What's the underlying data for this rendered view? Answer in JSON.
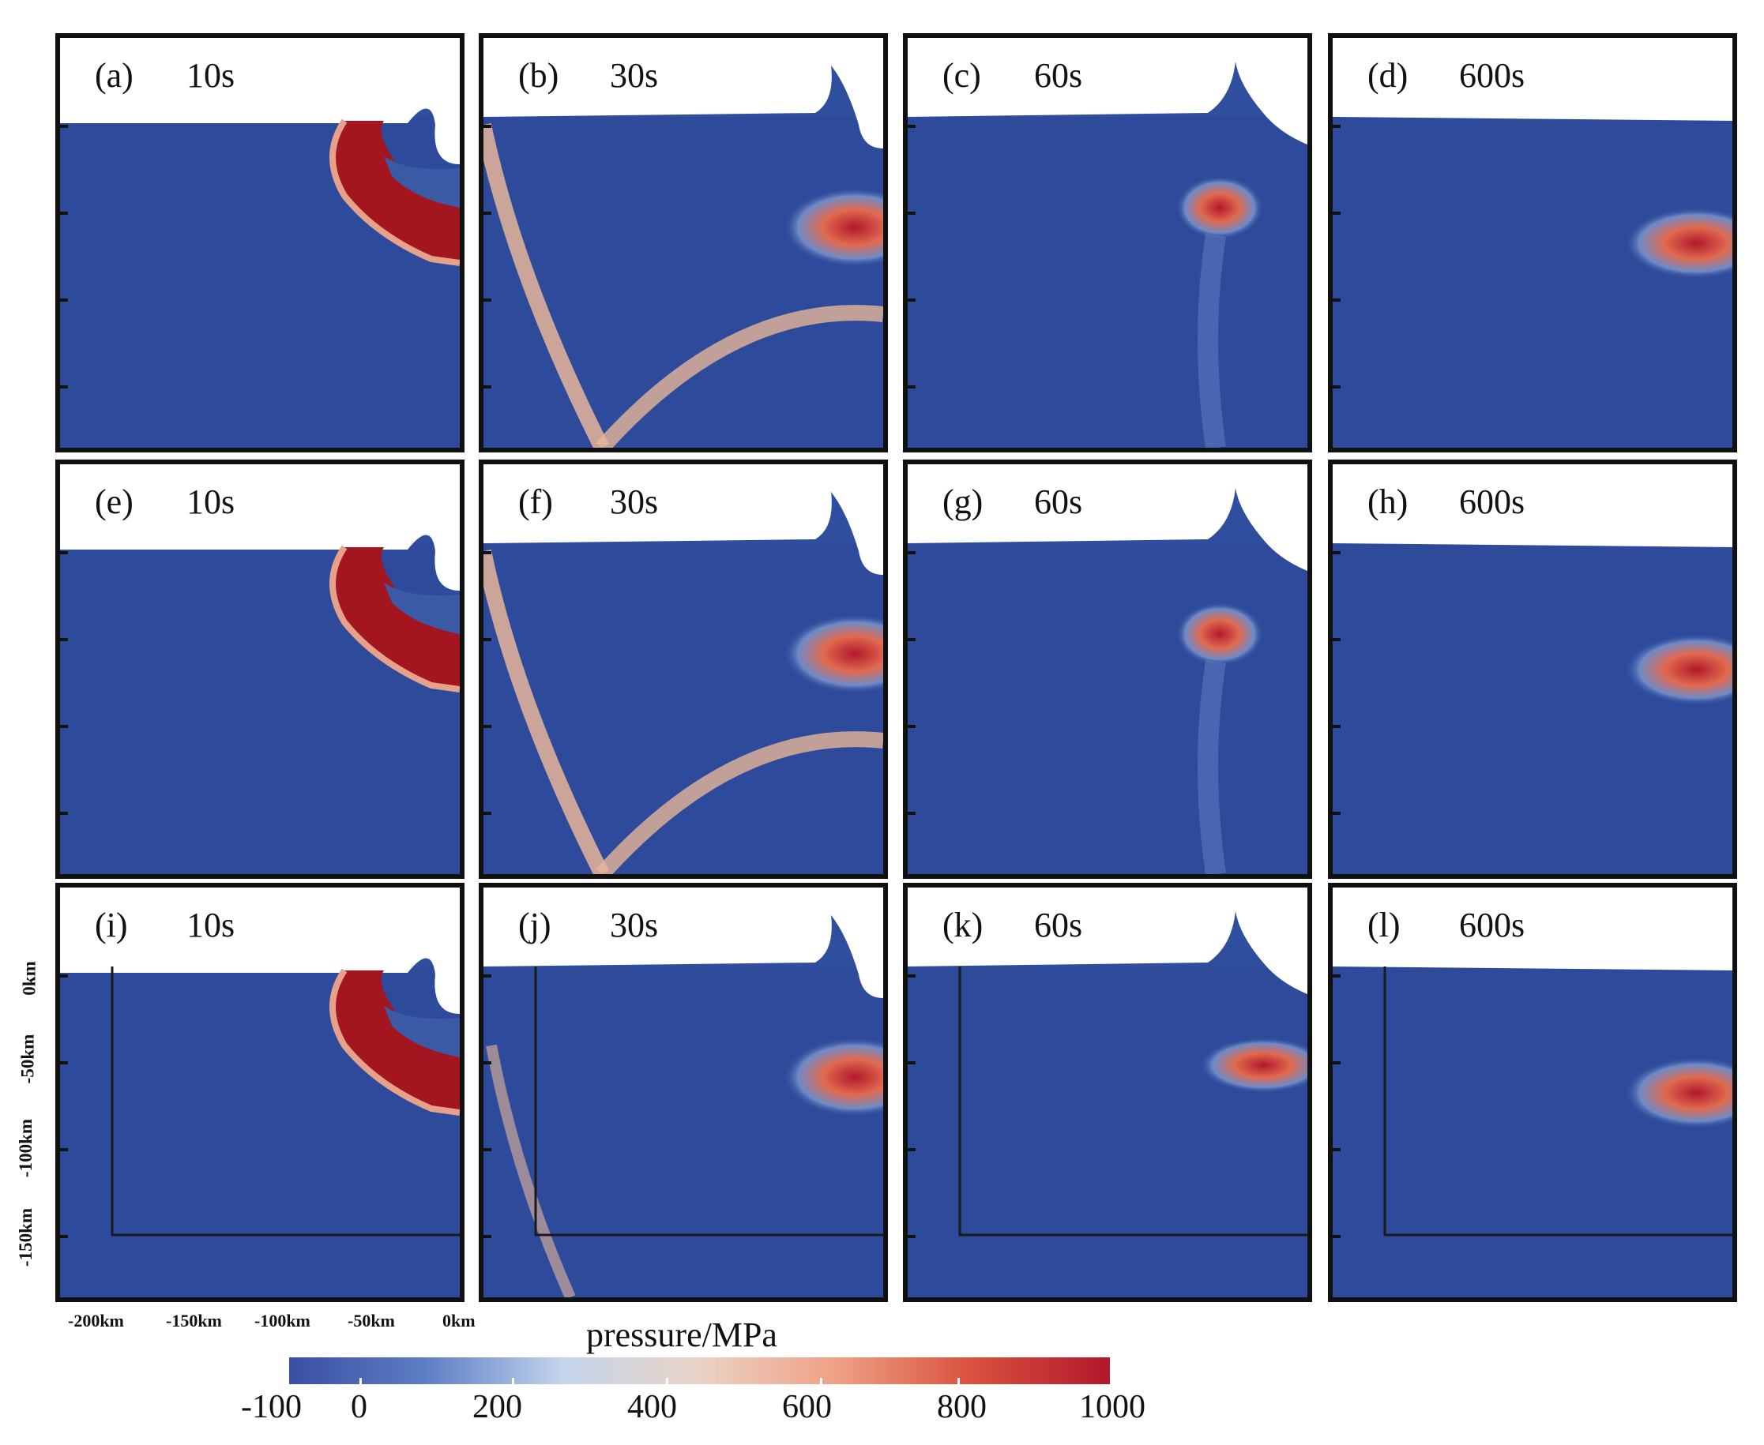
{
  "panels": [
    {
      "label": "(a)",
      "time": "10s"
    },
    {
      "label": "(b)",
      "time": "30s"
    },
    {
      "label": "(c)",
      "time": "60s"
    },
    {
      "label": "(d)",
      "time": "600s"
    },
    {
      "label": "(e)",
      "time": "10s"
    },
    {
      "label": "(f)",
      "time": "30s"
    },
    {
      "label": "(g)",
      "time": "60s"
    },
    {
      "label": "(h)",
      "time": "600s"
    },
    {
      "label": "(i)",
      "time": "10s"
    },
    {
      "label": "(j)",
      "time": "30s"
    },
    {
      "label": "(k)",
      "time": "60s"
    },
    {
      "label": "(l)",
      "time": "600s"
    }
  ],
  "axes": {
    "y_ticks": [
      "0km",
      "-50km",
      "-100km",
      "-150km"
    ],
    "x_ticks": [
      "-200km",
      "-150km",
      "-100km",
      "-50km",
      "0km"
    ]
  },
  "colorbar": {
    "title": "pressure/MPa",
    "ticks": [
      "-100",
      "0",
      "200",
      "400",
      "600",
      "800",
      "1000"
    ],
    "colors": [
      "#3a4ea3",
      "#5d7ec4",
      "#c4d4ec",
      "#e9d3c6",
      "#f0a084",
      "#d9503e",
      "#b2182b"
    ]
  },
  "colors": {
    "background_field": "#2f4f9e",
    "high_pressure": "#a3151f",
    "border": "#111111"
  }
}
